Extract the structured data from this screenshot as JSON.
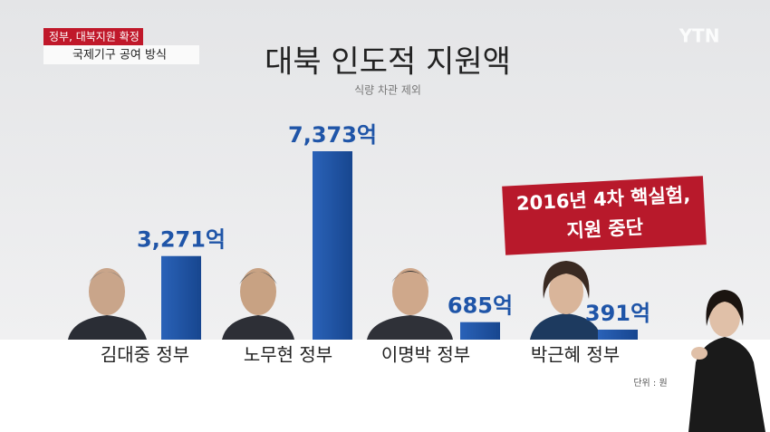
{
  "headline": {
    "tag": "정부, 대북지원 확정",
    "subhead": "국제기구 공여 방식"
  },
  "logo": "YTN",
  "chart_data": {
    "type": "bar",
    "title": "대북 인도적 지원액",
    "subtitle": "식량 차관 제외",
    "categories": [
      "김대중 정부",
      "노무현 정부",
      "이명박 정부",
      "박근혜 정부"
    ],
    "values": [
      3271,
      7373,
      685,
      391
    ],
    "value_labels": [
      "3,271억",
      "7,373억",
      "685억",
      "391억"
    ],
    "color": "#1f55a8",
    "annotation": [
      "2016년 4차 핵실험,",
      "지원 중단"
    ],
    "unit_note": "단위 : 원"
  }
}
